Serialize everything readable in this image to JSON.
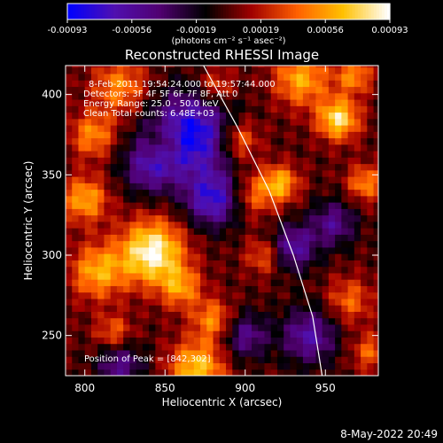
{
  "chart_data": {
    "type": "heatmap",
    "title": "Reconstructed RHESSI Image",
    "xlabel": "Heliocentric X (arcsec)",
    "ylabel": "Heliocentric Y (arcsec)",
    "xlim": [
      788,
      983
    ],
    "ylim": [
      225,
      418
    ],
    "xticks": [
      800,
      850,
      900,
      950
    ],
    "yticks": [
      250,
      300,
      350,
      400
    ],
    "colorbar": {
      "units": "(photons cm⁻² s⁻¹ asec⁻²)",
      "min": -0.00093,
      "max": 0.00093,
      "tick_labels": [
        "-0.00093",
        "-0.00056",
        "-0.00019",
        "0.00019",
        "0.00056",
        "0.00093"
      ],
      "colormap": [
        "#0000ff",
        "#5010b0",
        "#500070",
        "#000000",
        "#a00000",
        "#ff6000",
        "#ffc000",
        "#ffffff"
      ]
    },
    "annotations": [
      "8-Feb-2011 19:54:24.000 to 19:57:44.000",
      "Detectors: 3F 4F 5F 6F 7F 8F, Att 0",
      "Energy Range: 25.0 - 50.0 keV",
      "Clean     Total counts: 6.48E+03"
    ],
    "peak_label": "Position of Peak = [842,302]",
    "peak": [
      842,
      302
    ],
    "limb_curve": [
      [
        874,
        418
      ],
      [
        895,
        380
      ],
      [
        915,
        340
      ],
      [
        930,
        300
      ],
      [
        942,
        262
      ],
      [
        948,
        225
      ]
    ],
    "bright_sources": [
      [
        842,
        302,
        14,
        0.00093
      ],
      [
        808,
        290,
        12,
        0.0006
      ],
      [
        800,
        335,
        10,
        0.0006
      ],
      [
        805,
        375,
        10,
        0.0005
      ],
      [
        822,
        405,
        12,
        0.0005
      ],
      [
        860,
        280,
        9,
        0.0005
      ],
      [
        880,
        260,
        9,
        0.0005
      ],
      [
        870,
        230,
        12,
        0.0007
      ],
      [
        896,
        372,
        9,
        0.0005
      ],
      [
        905,
        338,
        10,
        0.0004
      ],
      [
        922,
        345,
        8,
        0.0006
      ],
      [
        935,
        410,
        12,
        0.0006
      ],
      [
        958,
        385,
        9,
        0.0008
      ],
      [
        968,
        412,
        8,
        0.0005
      ],
      [
        975,
        345,
        8,
        0.0005
      ],
      [
        965,
        272,
        10,
        0.0004
      ],
      [
        978,
        240,
        8,
        0.0004
      ],
      [
        818,
        252,
        8,
        0.0004
      ],
      [
        912,
        300,
        8,
        0.0004
      ],
      [
        850,
        370,
        8,
        0.00035
      ],
      [
        882,
        405,
        8,
        0.0004
      ]
    ],
    "dark_regions": [
      [
        866,
        375,
        18,
        -0.00093
      ],
      [
        880,
        335,
        12,
        -0.00075
      ],
      [
        930,
        305,
        10,
        -0.0006
      ],
      [
        940,
        250,
        12,
        -0.0006
      ],
      [
        840,
        355,
        12,
        -0.0005
      ],
      [
        900,
        250,
        10,
        -0.0005
      ],
      [
        822,
        232,
        10,
        -0.0005
      ],
      [
        955,
        320,
        10,
        -0.0005
      ]
    ]
  },
  "footer": {
    "timestamp": "8-May-2022 20:49"
  }
}
